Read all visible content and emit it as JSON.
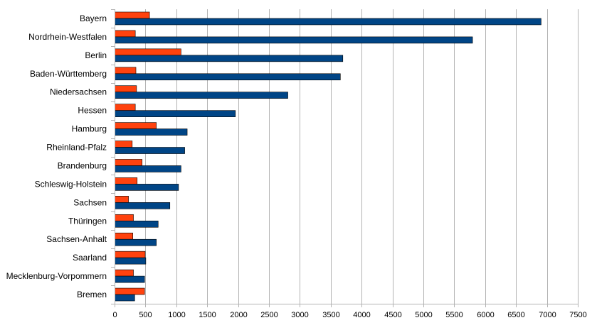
{
  "chart_data": {
    "type": "bar",
    "orientation": "horizontal",
    "categories": [
      "Bayern",
      "Nordrhein-Westfalen",
      "Berlin",
      "Baden-Württemberg",
      "Niedersachsen",
      "Hessen",
      "Hamburg",
      "Rheinland-Pfalz",
      "Brandenburg",
      "Schleswig-Holstein",
      "Sachsen",
      "Thüringen",
      "Sachsen-Anhalt",
      "Saarland",
      "Mecklenburg-Vorpommern",
      "Bremen"
    ],
    "series": [
      {
        "color": "#ff420e",
        "values": [
          560,
          330,
          1070,
          340,
          350,
          330,
          670,
          280,
          440,
          360,
          220,
          300,
          290,
          490,
          300,
          480
        ]
      },
      {
        "color": "#004586",
        "values": [
          6900,
          5790,
          3690,
          3650,
          2800,
          1950,
          1170,
          1130,
          1070,
          1030,
          890,
          700,
          670,
          500,
          480,
          320
        ]
      }
    ],
    "xlim": [
      0,
      7500
    ],
    "xticks": [
      0,
      500,
      1000,
      1500,
      2000,
      2500,
      3000,
      3500,
      4000,
      4500,
      5000,
      5500,
      6000,
      6500,
      7000,
      7500
    ],
    "title": "",
    "xlabel": "",
    "ylabel": "",
    "grid": "vertical",
    "legend": "none"
  }
}
